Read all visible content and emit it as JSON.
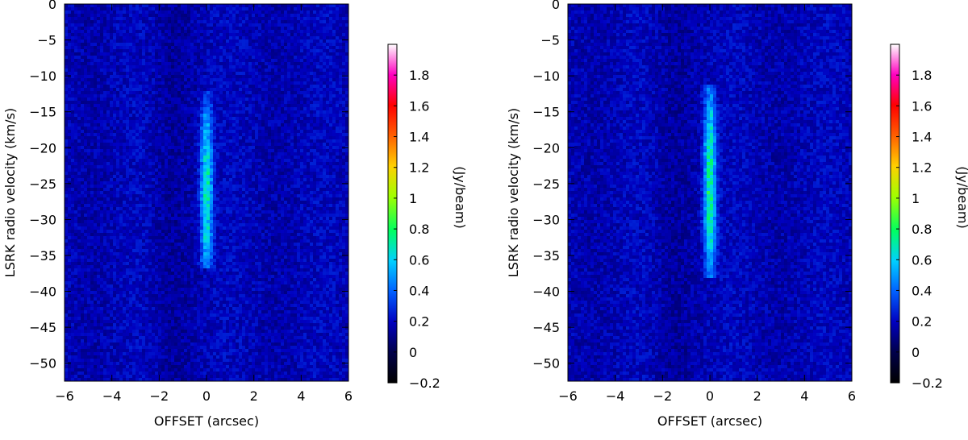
{
  "chart_data": [
    {
      "type": "heatmap",
      "title": "",
      "xlabel": "OFFSET (arcsec)",
      "ylabel": "LSRK radio velocity  (km/s)",
      "xlim": [
        -6,
        6
      ],
      "ylim": [
        -52.5,
        0
      ],
      "x_ticks": [
        -6,
        -4,
        -2,
        0,
        2,
        4,
        6
      ],
      "y_ticks": [
        0,
        -5,
        -10,
        -15,
        -20,
        -25,
        -30,
        -35,
        -40,
        -45,
        -50
      ],
      "colorbar": {
        "label": "(Jy/beam)",
        "range": [
          -0.2,
          2.0
        ],
        "ticks": [
          -0.2,
          0,
          0.2,
          0.4,
          0.6,
          0.8,
          1,
          1.2,
          1.4,
          1.6,
          1.8
        ]
      },
      "emission": {
        "x_center": 0,
        "x_width": 0.25,
        "v_min": -37,
        "v_max": -12,
        "v_peak": -26,
        "peak_value": 0.55
      },
      "background_level": 0.18
    },
    {
      "type": "heatmap",
      "title": "",
      "xlabel": "OFFSET (arcsec)",
      "ylabel": "LSRK radio velocity  (km/s)",
      "xlim": [
        -6,
        6
      ],
      "ylim": [
        -52.5,
        0
      ],
      "x_ticks": [
        -6,
        -4,
        -2,
        0,
        2,
        4,
        6
      ],
      "y_ticks": [
        0,
        -5,
        -10,
        -15,
        -20,
        -25,
        -30,
        -35,
        -40,
        -45,
        -50
      ],
      "colorbar": {
        "label": "(Jy/beam)",
        "range": [
          -0.2,
          2.0
        ],
        "ticks": [
          -0.2,
          0,
          0.2,
          0.4,
          0.6,
          0.8,
          1,
          1.2,
          1.4,
          1.6,
          1.8
        ]
      },
      "emission": {
        "x_center": 0,
        "x_width": 0.25,
        "v_min": -38,
        "v_max": -11,
        "v_peak": -25,
        "peak_value": 0.62
      },
      "background_level": 0.18
    }
  ],
  "colors": {
    "colormap": [
      "#000000",
      "#000080",
      "#0000ff",
      "#00c8ff",
      "#00ff80",
      "#c8ff00",
      "#ffc800",
      "#ff0000",
      "#ff00c8",
      "#ffffff"
    ]
  }
}
